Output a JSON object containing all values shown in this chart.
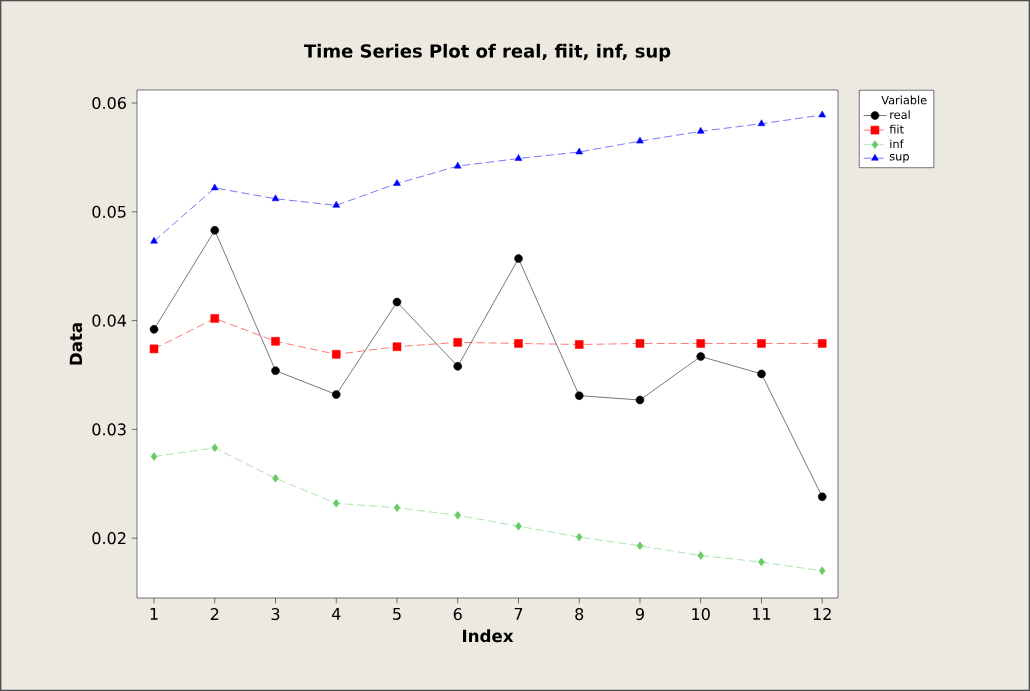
{
  "chart_data": {
    "type": "line",
    "title": "Time Series Plot of real, fiit, inf, sup",
    "xlabel": "Index",
    "ylabel": "Data",
    "legend_title": "Variable",
    "x": [
      1,
      2,
      3,
      4,
      5,
      6,
      7,
      8,
      9,
      10,
      11,
      12
    ],
    "series": [
      {
        "name": "real",
        "color": "#000000",
        "marker": "circle",
        "line_style": "solid",
        "values": [
          0.0392,
          0.0483,
          0.0354,
          0.0332,
          0.0417,
          0.0358,
          0.0457,
          0.0331,
          0.0327,
          0.0367,
          0.0351,
          0.0238
        ]
      },
      {
        "name": "fiit",
        "color": "#ff0000",
        "marker": "square",
        "line_style": "dashed",
        "values": [
          0.0374,
          0.0402,
          0.0381,
          0.0369,
          0.0376,
          0.038,
          0.0379,
          0.0378,
          0.0379,
          0.0379,
          0.0379,
          0.0379
        ]
      },
      {
        "name": "inf",
        "color": "#66cc66",
        "marker": "diamond",
        "line_style": "dashed",
        "values": [
          0.0275,
          0.0283,
          0.0255,
          0.0232,
          0.0228,
          0.0221,
          0.0211,
          0.0201,
          0.0193,
          0.0184,
          0.0178,
          0.017
        ]
      },
      {
        "name": "sup",
        "color": "#0000ff",
        "marker": "triangle",
        "line_style": "dashed",
        "values": [
          0.0473,
          0.0522,
          0.0512,
          0.0506,
          0.0526,
          0.0542,
          0.0549,
          0.0555,
          0.0565,
          0.0574,
          0.0581,
          0.0589
        ]
      }
    ],
    "xlim": [
      0.72,
      12.26
    ],
    "ylim": [
      0.0145,
      0.0612
    ],
    "xticks": [
      1,
      2,
      3,
      4,
      5,
      6,
      7,
      8,
      9,
      10,
      11,
      12
    ],
    "yticks": [
      0.02,
      0.03,
      0.04,
      0.05,
      0.06
    ],
    "grid": false,
    "legend": "top right"
  }
}
